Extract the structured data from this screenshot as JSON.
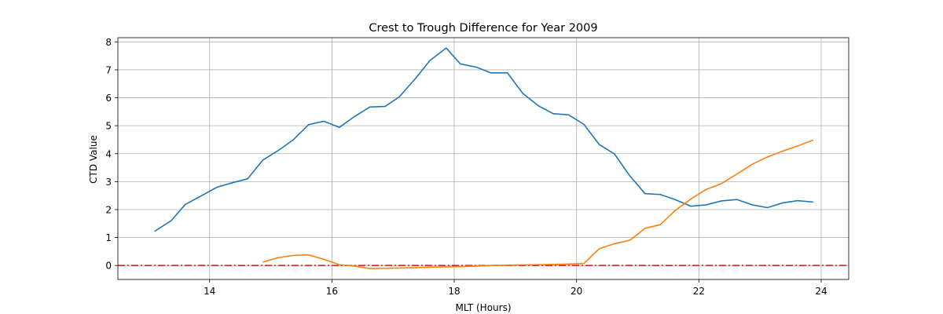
{
  "chart_data": {
    "type": "line",
    "title": "Crest to Trough Difference for Year 2009",
    "xlabel": "MLT (Hours)",
    "ylabel": "CTD Value",
    "xlim": [
      12.5,
      24.45
    ],
    "ylim": [
      -0.5,
      8.15
    ],
    "xticks": [
      14,
      16,
      18,
      20,
      22,
      24
    ],
    "yticks": [
      0,
      1,
      2,
      3,
      4,
      5,
      6,
      7,
      8
    ],
    "grid": true,
    "reference_line": {
      "y": 0,
      "color": "#d62728",
      "style": "dash-dot"
    },
    "series": [
      {
        "color": "#1f77b4",
        "x": [
          13.1,
          13.37,
          13.6,
          13.87,
          14.12,
          14.37,
          14.62,
          14.87,
          15.12,
          15.37,
          15.62,
          15.87,
          16.12,
          16.37,
          16.62,
          16.87,
          17.1,
          17.37,
          17.6,
          17.87,
          18.1,
          18.37,
          18.6,
          18.87,
          19.12,
          19.37,
          19.62,
          19.87,
          20.12,
          20.37,
          20.62,
          20.87,
          21.12,
          21.37,
          21.62,
          21.87,
          22.12,
          22.37,
          22.62,
          22.87,
          23.12,
          23.37,
          23.62,
          23.87
        ],
        "values": [
          1.22,
          1.6,
          2.18,
          2.5,
          2.8,
          2.96,
          3.1,
          3.77,
          4.11,
          4.5,
          5.04,
          5.16,
          4.94,
          5.33,
          5.67,
          5.69,
          6.03,
          6.7,
          7.33,
          7.78,
          7.21,
          7.09,
          6.89,
          6.89,
          6.16,
          5.72,
          5.43,
          5.39,
          5.05,
          4.33,
          3.99,
          3.21,
          2.57,
          2.54,
          2.35,
          2.12,
          2.17,
          2.31,
          2.36,
          2.17,
          2.07,
          2.24,
          2.32,
          2.27
        ]
      },
      {
        "color": "#ff7f0e",
        "x": [
          14.87,
          15.12,
          15.37,
          15.62,
          15.87,
          16.12,
          16.37,
          16.62,
          16.87,
          17.12,
          17.37,
          17.62,
          17.87,
          18.12,
          18.37,
          18.62,
          18.87,
          19.12,
          19.37,
          19.62,
          19.87,
          20.12,
          20.37,
          20.62,
          20.87,
          21.12,
          21.37,
          21.62,
          21.87,
          22.12,
          22.37,
          22.62,
          22.87,
          23.12,
          23.37,
          23.62,
          23.87
        ],
        "values": [
          0.12,
          0.28,
          0.36,
          0.38,
          0.22,
          0.03,
          -0.02,
          -0.11,
          -0.1,
          -0.09,
          -0.08,
          -0.06,
          -0.05,
          -0.04,
          -0.02,
          0.0,
          0.01,
          0.02,
          0.03,
          0.04,
          0.05,
          0.07,
          0.6,
          0.78,
          0.9,
          1.33,
          1.46,
          1.98,
          2.38,
          2.72,
          2.93,
          3.27,
          3.62,
          3.88,
          4.09,
          4.28,
          4.49
        ]
      }
    ]
  }
}
